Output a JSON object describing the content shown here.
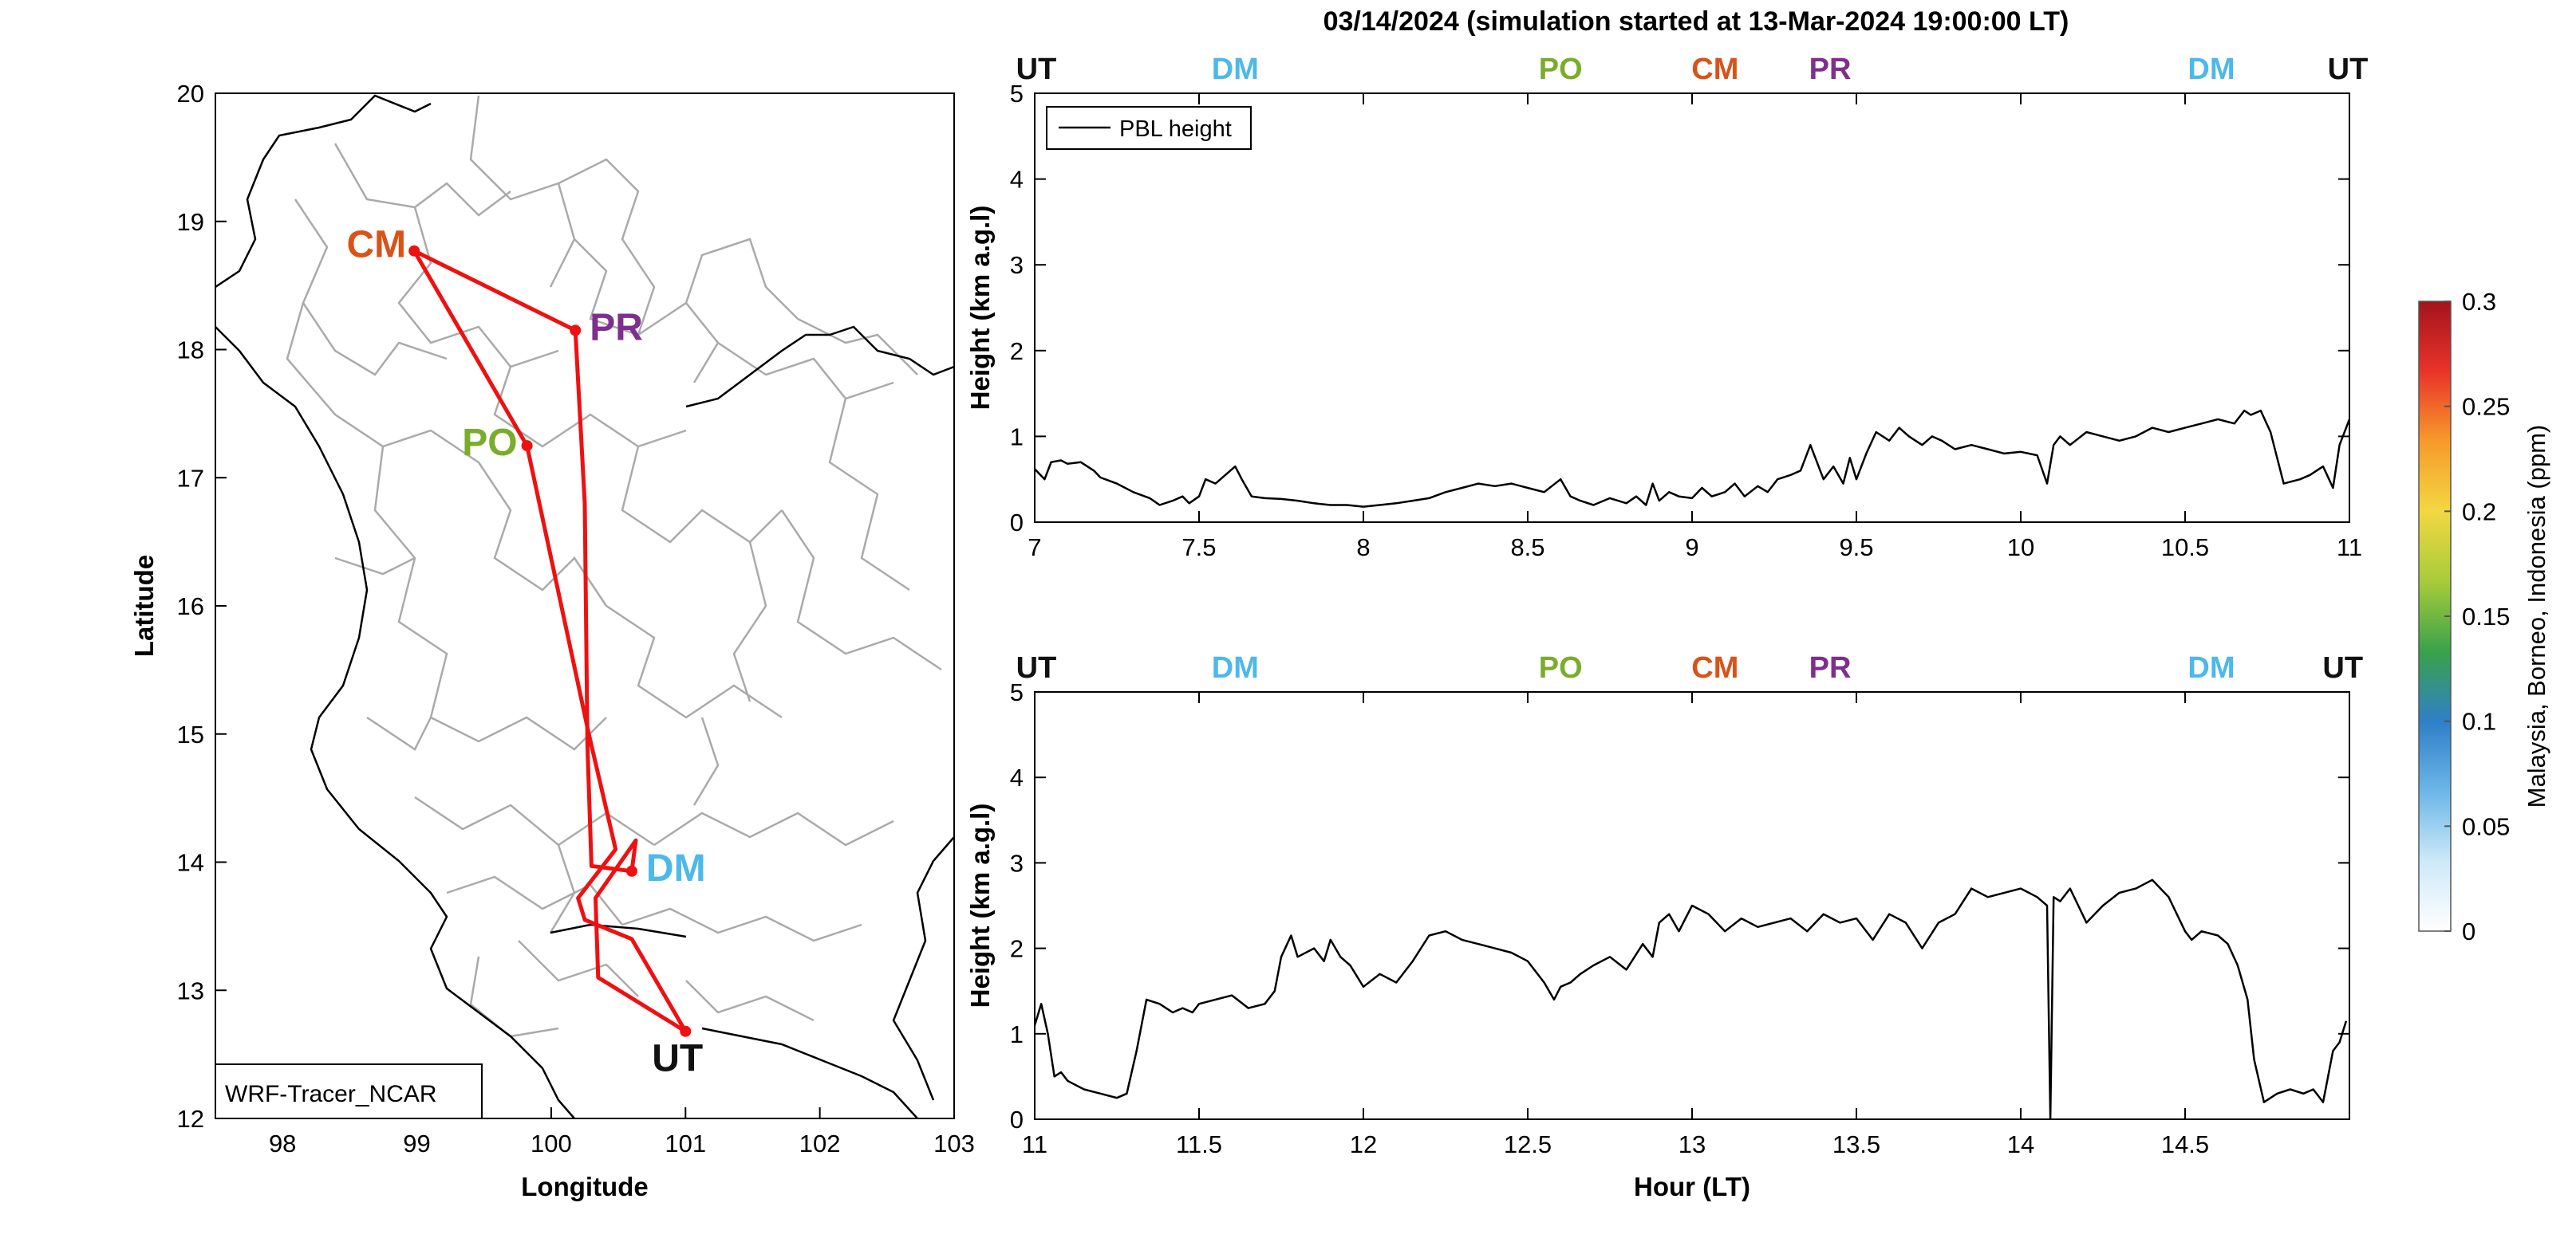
{
  "title": "03/14/2024 (simulation started at 13-Mar-2024 19:00:00 LT)",
  "colors": {
    "route": "#ee1111",
    "UT": "#111111",
    "DM": "#4db8ea",
    "PO": "#7aad2b",
    "CM": "#d95319",
    "PR": "#7e2f8e",
    "border": "#aaaaaa",
    "coast": "#000000",
    "pbl": "#000000"
  },
  "map": {
    "xlabel": "Longitude",
    "ylabel": "Latitude",
    "xlim": [
      97.5,
      103
    ],
    "ylim": [
      12,
      20
    ],
    "xticks": [
      "98",
      "99",
      "100",
      "101",
      "102",
      "103"
    ],
    "yticks": [
      "12",
      "13",
      "14",
      "15",
      "16",
      "17",
      "18",
      "19",
      "20"
    ],
    "legend": "WRF-Tracer_NCAR",
    "sites": [
      {
        "code": "CM",
        "lon": 98.98,
        "lat": 18.77
      },
      {
        "code": "PR",
        "lon": 100.18,
        "lat": 18.15
      },
      {
        "code": "PO",
        "lon": 99.82,
        "lat": 17.25
      },
      {
        "code": "DM",
        "lon": 100.6,
        "lat": 13.93
      },
      {
        "code": "UT",
        "lon": 101.0,
        "lat": 12.68
      }
    ],
    "route": [
      [
        101.0,
        12.68
      ],
      [
        100.35,
        13.1
      ],
      [
        100.33,
        13.72
      ],
      [
        100.63,
        14.17
      ],
      [
        100.6,
        13.93
      ],
      [
        100.3,
        13.97
      ],
      [
        100.27,
        14.9
      ],
      [
        100.25,
        16.8
      ],
      [
        100.18,
        18.15
      ],
      [
        98.98,
        18.77
      ],
      [
        99.82,
        17.25
      ],
      [
        100.28,
        15.0
      ],
      [
        100.48,
        14.1
      ],
      [
        100.2,
        13.72
      ],
      [
        100.25,
        13.55
      ],
      [
        100.6,
        13.4
      ],
      [
        101.0,
        12.68
      ]
    ]
  },
  "chart_data": [
    {
      "type": "line",
      "ylabel": "Height (km a.g.l)",
      "xlim": [
        7,
        11
      ],
      "ylim": [
        0,
        5
      ],
      "xticks": [
        "7",
        "7.5",
        "8",
        "8.5",
        "9",
        "9.5",
        "10",
        "10.5",
        "11"
      ],
      "yticks": [
        "0",
        "1",
        "2",
        "3",
        "4",
        "5"
      ],
      "legend": [
        "PBL height"
      ],
      "markers": [
        {
          "label": "UT",
          "x": 7.0
        },
        {
          "label": "DM",
          "x": 7.61
        },
        {
          "label": "PO",
          "x": 8.6
        },
        {
          "label": "CM",
          "x": 9.07
        },
        {
          "label": "PR",
          "x": 9.42
        },
        {
          "label": "DM",
          "x": 10.58
        },
        {
          "label": "UT",
          "x": 11.0
        }
      ],
      "series": [
        {
          "name": "PBL height",
          "x": [
            7.0,
            7.03,
            7.05,
            7.08,
            7.1,
            7.14,
            7.18,
            7.2,
            7.25,
            7.3,
            7.35,
            7.38,
            7.42,
            7.45,
            7.47,
            7.5,
            7.52,
            7.55,
            7.58,
            7.61,
            7.63,
            7.66,
            7.7,
            7.75,
            7.8,
            7.85,
            7.9,
            7.95,
            8.0,
            8.05,
            8.1,
            8.15,
            8.2,
            8.25,
            8.3,
            8.35,
            8.4,
            8.45,
            8.5,
            8.55,
            8.6,
            8.63,
            8.66,
            8.7,
            8.75,
            8.8,
            8.83,
            8.86,
            8.88,
            8.9,
            8.93,
            8.96,
            9.0,
            9.03,
            9.06,
            9.1,
            9.13,
            9.16,
            9.2,
            9.23,
            9.26,
            9.3,
            9.33,
            9.36,
            9.4,
            9.43,
            9.46,
            9.48,
            9.5,
            9.53,
            9.56,
            9.6,
            9.63,
            9.66,
            9.7,
            9.73,
            9.76,
            9.8,
            9.85,
            9.9,
            9.95,
            10.0,
            10.05,
            10.08,
            10.1,
            10.12,
            10.15,
            10.2,
            10.25,
            10.3,
            10.35,
            10.4,
            10.45,
            10.5,
            10.55,
            10.6,
            10.65,
            10.68,
            10.7,
            10.73,
            10.76,
            10.8,
            10.85,
            10.88,
            10.9,
            10.92,
            10.95,
            10.97,
            11.0
          ],
          "y": [
            0.62,
            0.5,
            0.7,
            0.72,
            0.68,
            0.7,
            0.6,
            0.52,
            0.45,
            0.35,
            0.28,
            0.2,
            0.25,
            0.3,
            0.22,
            0.3,
            0.5,
            0.45,
            0.55,
            0.65,
            0.5,
            0.3,
            0.28,
            0.27,
            0.25,
            0.22,
            0.2,
            0.2,
            0.18,
            0.2,
            0.22,
            0.25,
            0.28,
            0.35,
            0.4,
            0.45,
            0.42,
            0.45,
            0.4,
            0.35,
            0.5,
            0.3,
            0.25,
            0.2,
            0.28,
            0.22,
            0.3,
            0.2,
            0.45,
            0.25,
            0.35,
            0.3,
            0.28,
            0.4,
            0.3,
            0.35,
            0.45,
            0.3,
            0.42,
            0.35,
            0.5,
            0.55,
            0.6,
            0.9,
            0.5,
            0.65,
            0.45,
            0.75,
            0.5,
            0.8,
            1.05,
            0.95,
            1.1,
            1.0,
            0.9,
            1.0,
            0.95,
            0.85,
            0.9,
            0.85,
            0.8,
            0.82,
            0.78,
            0.45,
            0.9,
            1.0,
            0.9,
            1.05,
            1.0,
            0.95,
            1.0,
            1.1,
            1.05,
            1.1,
            1.15,
            1.2,
            1.15,
            1.3,
            1.25,
            1.3,
            1.05,
            0.45,
            0.5,
            0.55,
            0.6,
            0.65,
            0.4,
            0.9,
            1.2
          ]
        }
      ]
    },
    {
      "type": "line",
      "xlabel": "Hour (LT)",
      "ylabel": "Height (km a.g.l)",
      "xlim": [
        11,
        15
      ],
      "ylim": [
        0,
        5
      ],
      "xticks": [
        "11",
        "11.5",
        "12",
        "12.5",
        "13",
        "13.5",
        "14",
        "14.5"
      ],
      "yticks": [
        "0",
        "1",
        "2",
        "3",
        "4",
        "5"
      ],
      "markers": [
        {
          "label": "UT",
          "x": 11.0
        },
        {
          "label": "DM",
          "x": 11.61
        },
        {
          "label": "PO",
          "x": 12.6
        },
        {
          "label": "CM",
          "x": 13.07
        },
        {
          "label": "PR",
          "x": 13.42
        },
        {
          "label": "DM",
          "x": 14.58
        },
        {
          "label": "UT",
          "x": 14.98
        }
      ],
      "series": [
        {
          "x": [
            11.0,
            11.02,
            11.04,
            11.06,
            11.08,
            11.1,
            11.15,
            11.2,
            11.25,
            11.28,
            11.31,
            11.34,
            11.38,
            11.42,
            11.45,
            11.48,
            11.5,
            11.55,
            11.6,
            11.65,
            11.7,
            11.73,
            11.75,
            11.78,
            11.8,
            11.85,
            11.88,
            11.9,
            11.93,
            11.96,
            12.0,
            12.05,
            12.1,
            12.15,
            12.2,
            12.25,
            12.3,
            12.35,
            12.4,
            12.45,
            12.5,
            12.55,
            12.58,
            12.6,
            12.63,
            12.66,
            12.7,
            12.75,
            12.8,
            12.85,
            12.88,
            12.9,
            12.93,
            12.96,
            13.0,
            13.05,
            13.1,
            13.15,
            13.2,
            13.25,
            13.3,
            13.35,
            13.4,
            13.45,
            13.5,
            13.55,
            13.6,
            13.65,
            13.7,
            13.75,
            13.8,
            13.85,
            13.9,
            13.95,
            14.0,
            14.05,
            14.08,
            14.09,
            14.1,
            14.12,
            14.15,
            14.2,
            14.25,
            14.3,
            14.35,
            14.4,
            14.45,
            14.5,
            14.52,
            14.55,
            14.6,
            14.63,
            14.66,
            14.69,
            14.71,
            14.74,
            14.78,
            14.82,
            14.86,
            14.89,
            14.92,
            14.95,
            14.97,
            14.99
          ],
          "y": [
            1.1,
            1.35,
            1.0,
            0.5,
            0.55,
            0.45,
            0.35,
            0.3,
            0.25,
            0.3,
            0.8,
            1.4,
            1.35,
            1.25,
            1.3,
            1.25,
            1.35,
            1.4,
            1.45,
            1.3,
            1.35,
            1.5,
            1.9,
            2.15,
            1.9,
            2.0,
            1.85,
            2.1,
            1.9,
            1.8,
            1.55,
            1.7,
            1.6,
            1.85,
            2.15,
            2.2,
            2.1,
            2.05,
            2.0,
            1.95,
            1.85,
            1.6,
            1.4,
            1.55,
            1.6,
            1.7,
            1.8,
            1.9,
            1.75,
            2.05,
            1.9,
            2.3,
            2.4,
            2.2,
            2.5,
            2.4,
            2.2,
            2.35,
            2.25,
            2.3,
            2.35,
            2.2,
            2.4,
            2.3,
            2.35,
            2.1,
            2.4,
            2.3,
            2.0,
            2.3,
            2.4,
            2.7,
            2.6,
            2.65,
            2.7,
            2.6,
            2.5,
            0.0,
            2.6,
            2.55,
            2.7,
            2.3,
            2.5,
            2.65,
            2.7,
            2.8,
            2.6,
            2.2,
            2.1,
            2.2,
            2.15,
            2.05,
            1.8,
            1.4,
            0.7,
            0.2,
            0.3,
            0.35,
            0.3,
            0.35,
            0.2,
            0.8,
            0.9,
            1.15
          ]
        }
      ]
    }
  ],
  "colorbar": {
    "label": "Malaysia, Borneo, Indonesia (ppm)",
    "ticks": [
      "0",
      "0.05",
      "0.1",
      "0.15",
      "0.2",
      "0.25",
      "0.3"
    ],
    "range": [
      0,
      0.3
    ],
    "colors": [
      "#ffffff",
      "#cde9f8",
      "#6cb6e8",
      "#2f7fc7",
      "#3aa24a",
      "#a8cc3a",
      "#f3d743",
      "#f79a2b",
      "#e9332a",
      "#a3141d"
    ]
  }
}
